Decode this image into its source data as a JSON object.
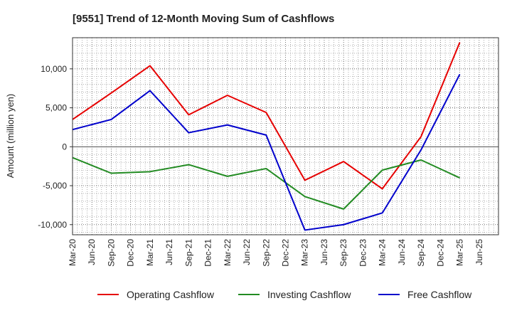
{
  "chart_data": {
    "type": "line",
    "title": "[9551]  Trend of 12-Month Moving Sum of Cashflows",
    "xlabel": "",
    "ylabel": "Amount (million yen)",
    "ylim": [
      -11300,
      14000
    ],
    "yticks": [
      10000,
      5000,
      0,
      -5000,
      -10000
    ],
    "ytick_labels": [
      "10,000",
      "5,000",
      "0",
      "-5,000",
      "-10,000"
    ],
    "grid": true,
    "legend_position": "bottom",
    "x_ticks": [
      "Mar-20",
      "Jun-20",
      "Sep-20",
      "Dec-20",
      "Mar-21",
      "Jun-21",
      "Sep-21",
      "Dec-21",
      "Mar-22",
      "Jun-22",
      "Sep-22",
      "Dec-22",
      "Mar-23",
      "Jun-23",
      "Sep-23",
      "Dec-23",
      "Mar-24",
      "Jun-24",
      "Sep-24",
      "Dec-24",
      "Mar-25",
      "Jun-25"
    ],
    "x": [
      "Mar-20",
      "Sep-20",
      "Mar-21",
      "Sep-21",
      "Mar-22",
      "Sep-22",
      "Mar-23",
      "Sep-23",
      "Mar-24",
      "Sep-24",
      "Mar-25"
    ],
    "series": [
      {
        "name": "Operating Cashflow",
        "color": "#e60000",
        "values": [
          3500,
          6900,
          10400,
          4100,
          6600,
          4400,
          -4300,
          -1900,
          -5400,
          1300,
          13400
        ]
      },
      {
        "name": "Investing Cashflow",
        "color": "#228b22",
        "values": [
          -1400,
          -3400,
          -3200,
          -2300,
          -3800,
          -2800,
          -6400,
          -8000,
          -3000,
          -1700,
          -4000
        ]
      },
      {
        "name": "Free Cashflow",
        "color": "#0000cc",
        "values": [
          2200,
          3500,
          7200,
          1800,
          2800,
          1500,
          -10700,
          -10000,
          -8500,
          -400,
          9300
        ]
      }
    ]
  }
}
